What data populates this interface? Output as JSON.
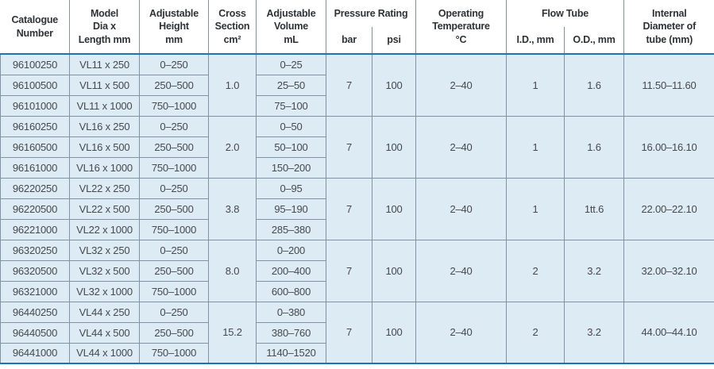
{
  "colors": {
    "accent_blue": "#1d73b6",
    "grid_line": "#7f93a0",
    "row_background": "#dcebf4"
  },
  "header": {
    "catalogue": "Catalogue\nNumber",
    "model": "Model\nDia x\nLength mm",
    "height": "Adjustable\nHeight\nmm",
    "cross_section": "Cross\nSection\ncm²",
    "volume": "Adjustable\nVolume\nmL",
    "pressure_rating": "Pressure Rating",
    "bar": "bar",
    "psi": "psi",
    "temperature": "Operating\nTemperature\n°C",
    "flow_tube": "Flow Tube",
    "id": "I.D., mm",
    "od": "O.D., mm",
    "internal_diameter": "Internal\nDiameter of\ntube (mm)"
  },
  "groups": [
    {
      "rows": [
        {
          "catalogue": "96100250",
          "model": "VL11 x 250",
          "height": "0–250",
          "volume": "0–25"
        },
        {
          "catalogue": "96100500",
          "model": "VL11 x 500",
          "height": "250–500",
          "volume": "25–50"
        },
        {
          "catalogue": "96101000",
          "model": "VL11 x 1000",
          "height": "750–1000",
          "volume": "75–100"
        }
      ],
      "cross_section": "1.0",
      "bar": "7",
      "psi": "100",
      "temperature": "2–40",
      "id": "1",
      "od": "1.6",
      "internal_diameter": "11.50–11.60"
    },
    {
      "rows": [
        {
          "catalogue": "96160250",
          "model": "VL16 x 250",
          "height": "0–250",
          "volume": "0–50"
        },
        {
          "catalogue": "96160500",
          "model": "VL16 x 500",
          "height": "250–500",
          "volume": "50–100"
        },
        {
          "catalogue": "96161000",
          "model": "VL16 x 1000",
          "height": "750–1000",
          "volume": "150–200"
        }
      ],
      "cross_section": "2.0",
      "bar": "7",
      "psi": "100",
      "temperature": "2–40",
      "id": "1",
      "od": "1.6",
      "internal_diameter": "16.00–16.10"
    },
    {
      "rows": [
        {
          "catalogue": "96220250",
          "model": "VL22 x 250",
          "height": "0–250",
          "volume": "0–95"
        },
        {
          "catalogue": "96220500",
          "model": "VL22 x 500",
          "height": "250–500",
          "volume": "95–190"
        },
        {
          "catalogue": "96221000",
          "model": "VL22 x 1000",
          "height": "750–1000",
          "volume": "285–380"
        }
      ],
      "cross_section": "3.8",
      "bar": "7",
      "psi": "100",
      "temperature": "2–40",
      "id": "1",
      "od": "1tt.6",
      "internal_diameter": "22.00–22.10"
    },
    {
      "rows": [
        {
          "catalogue": "96320250",
          "model": "VL32 x 250",
          "height": "0–250",
          "volume": "0–200"
        },
        {
          "catalogue": "96320500",
          "model": "VL32 x 500",
          "height": "250–500",
          "volume": "200–400"
        },
        {
          "catalogue": "96321000",
          "model": "VL32 x 1000",
          "height": "750–1000",
          "volume": "600–800"
        }
      ],
      "cross_section": "8.0",
      "bar": "7",
      "psi": "100",
      "temperature": "2–40",
      "id": "2",
      "od": "3.2",
      "internal_diameter": "32.00–32.10"
    },
    {
      "rows": [
        {
          "catalogue": "96440250",
          "model": "VL44 x 250",
          "height": "0–250",
          "volume": "0–380"
        },
        {
          "catalogue": "96440500",
          "model": "VL44 x 500",
          "height": "250–500",
          "volume": "380–760"
        },
        {
          "catalogue": "96441000",
          "model": "VL44 x 1000",
          "height": "750–1000",
          "volume": "1140–1520"
        }
      ],
      "cross_section": "15.2",
      "bar": "7",
      "psi": "100",
      "temperature": "2–40",
      "id": "2",
      "od": "3.2",
      "internal_diameter": "44.00–44.10"
    }
  ]
}
